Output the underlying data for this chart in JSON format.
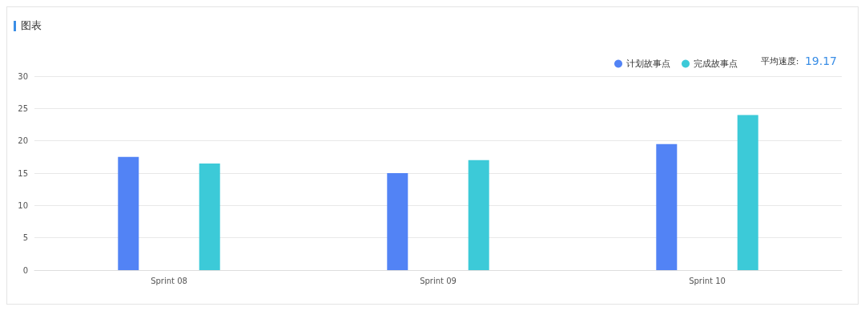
{
  "chart_data": {
    "type": "bar",
    "title": "图表",
    "categories": [
      "Sprint 08",
      "Sprint 09",
      "Sprint 10"
    ],
    "series": [
      {
        "name": "计划故事点",
        "color": "#5283f5",
        "values": [
          17.5,
          15,
          19.5
        ]
      },
      {
        "name": "完成故事点",
        "color": "#3ccad8",
        "values": [
          16.5,
          17,
          24
        ]
      }
    ],
    "ylim": [
      0,
      30
    ],
    "yticks": [
      0,
      5,
      10,
      15,
      20,
      25,
      30
    ],
    "grid": "y",
    "legend": "top right",
    "annotations": [
      "平均速度: 19.17"
    ]
  }
}
